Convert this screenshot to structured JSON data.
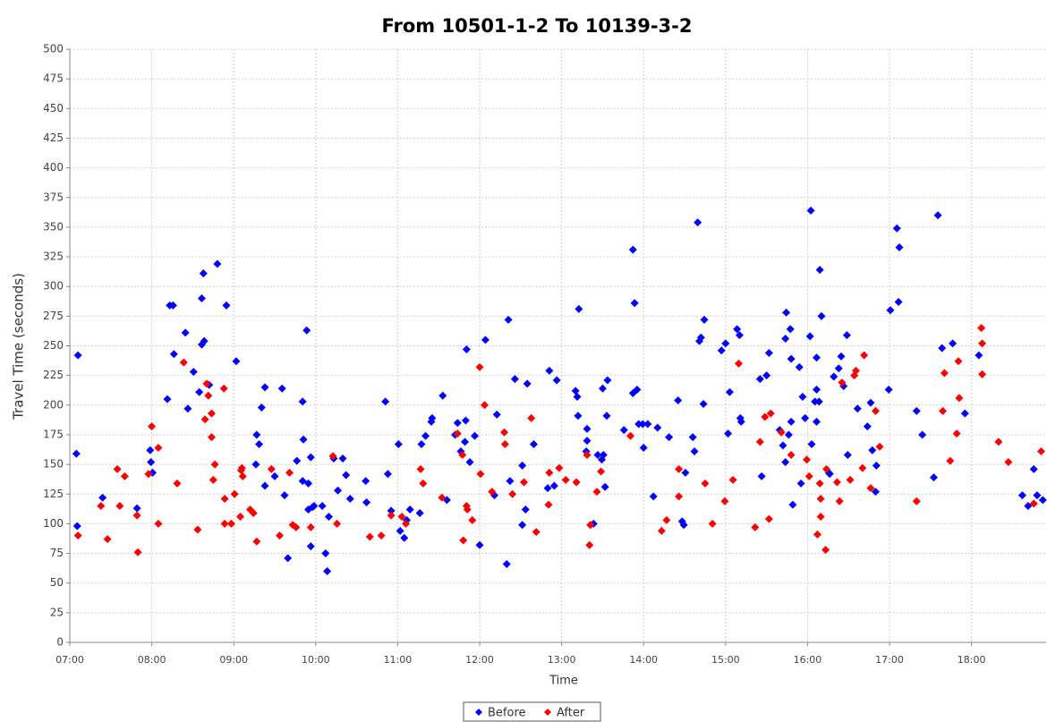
{
  "chart_data": {
    "type": "scatter",
    "title": "From 10501-1-2 To 10139-3-2",
    "x_label": "Time",
    "y_label": "Travel Time (seconds)",
    "xlim": [
      7,
      18.91
    ],
    "ylim": [
      0,
      500
    ],
    "xticks": [
      {
        "value": 7,
        "label": "07:00"
      },
      {
        "value": 8,
        "label": "08:00"
      },
      {
        "value": 9,
        "label": "09:00"
      },
      {
        "value": 10,
        "label": "10:00"
      },
      {
        "value": 11,
        "label": "11:00"
      },
      {
        "value": 12,
        "label": "12:00"
      },
      {
        "value": 13,
        "label": "13:00"
      },
      {
        "value": 14,
        "label": "14:00"
      },
      {
        "value": 15,
        "label": "15:00"
      },
      {
        "value": 16,
        "label": "16:00"
      },
      {
        "value": 17,
        "label": "17:00"
      },
      {
        "value": 18,
        "label": "18:00"
      }
    ],
    "yticks": [
      0,
      25,
      50,
      75,
      100,
      125,
      150,
      175,
      200,
      225,
      250,
      275,
      300,
      325,
      350,
      375,
      400,
      425,
      450,
      475,
      500
    ],
    "grid": true,
    "series": [
      {
        "name": "Before",
        "color": "#0000ff",
        "x": [
          7.1,
          7.08,
          7.09,
          7.4,
          7.82,
          7.98,
          7.99,
          8.01,
          8.19,
          8.22,
          8.26,
          8.27,
          8.41,
          8.44,
          8.51,
          8.58,
          8.61,
          8.61,
          8.63,
          8.64,
          8.7,
          8.8,
          8.91,
          9.03,
          9.28,
          9.31,
          9.34,
          9.38,
          9.27,
          9.38,
          9.5,
          9.59,
          9.62,
          9.66,
          9.77,
          9.84,
          9.85,
          9.84,
          9.89,
          9.91,
          9.94,
          9.91,
          9.96,
          9.94,
          9.98,
          10.08,
          10.12,
          10.14,
          10.16,
          10.22,
          10.27,
          10.33,
          10.37,
          10.42,
          10.61,
          10.62,
          10.85,
          10.88,
          10.92,
          11.01,
          11.03,
          11.08,
          11.11,
          11.15,
          11.27,
          11.29,
          11.34,
          11.41,
          11.42,
          11.55,
          11.6,
          11.7,
          11.73,
          11.77,
          11.82,
          11.83,
          11.84,
          11.88,
          11.94,
          12.0,
          12.07,
          12.18,
          12.21,
          12.33,
          12.35,
          12.37,
          12.43,
          12.52,
          12.56,
          12.58,
          12.52,
          12.66,
          12.83,
          12.85,
          12.94,
          12.91,
          13.17,
          13.19,
          13.21,
          13.2,
          13.31,
          13.31,
          13.3,
          13.39,
          13.44,
          13.49,
          13.5,
          13.51,
          13.53,
          13.56,
          13.55,
          13.76,
          13.87,
          13.89,
          13.87,
          13.92,
          13.94,
          13.99,
          14.0,
          14.05,
          14.12,
          14.17,
          14.31,
          14.42,
          14.47,
          14.49,
          14.51,
          14.6,
          14.62,
          14.66,
          14.68,
          14.7,
          14.73,
          14.74,
          14.95,
          15.0,
          15.05,
          15.03,
          15.14,
          15.17,
          15.18,
          15.19,
          15.44,
          15.42,
          15.5,
          15.53,
          15.66,
          15.7,
          15.73,
          15.73,
          15.74,
          15.77,
          15.79,
          15.8,
          15.8,
          15.82,
          15.9,
          15.92,
          15.94,
          15.97,
          16.03,
          16.05,
          16.04,
          16.09,
          16.11,
          16.11,
          16.11,
          16.14,
          16.15,
          16.17,
          16.26,
          16.27,
          16.32,
          16.38,
          16.41,
          16.44,
          16.48,
          16.49,
          16.61,
          16.73,
          16.77,
          16.79,
          16.83,
          16.84,
          16.99,
          17.01,
          17.09,
          17.11,
          17.12,
          17.33,
          17.4,
          17.54,
          17.59,
          17.64,
          17.77,
          17.92,
          18.09,
          18.62,
          18.69,
          18.76,
          18.8,
          18.87
        ],
        "values": [
          242,
          159,
          98,
          122,
          113,
          162,
          152,
          143,
          205,
          284,
          284,
          243,
          261,
          197,
          228,
          211,
          290,
          251,
          311,
          254,
          217,
          319,
          284,
          237,
          175,
          167,
          198,
          215,
          150,
          132,
          140,
          214,
          124,
          71,
          153,
          136,
          171,
          203,
          263,
          134,
          156,
          112,
          114,
          81,
          115,
          115,
          75,
          60,
          106,
          155,
          128,
          155,
          141,
          121,
          136,
          118,
          203,
          142,
          111,
          167,
          94,
          88,
          103,
          112,
          109,
          167,
          174,
          186,
          189,
          208,
          120,
          175,
          185,
          161,
          169,
          187,
          247,
          152,
          174,
          82,
          255,
          124,
          192,
          66,
          272,
          136,
          222,
          149,
          112,
          218,
          99,
          167,
          130,
          229,
          221,
          132,
          212,
          207,
          281,
          191,
          180,
          170,
          161,
          100,
          158,
          154,
          214,
          158,
          131,
          221,
          191,
          179,
          331,
          286,
          210,
          213,
          184,
          184,
          164,
          184,
          123,
          181,
          173,
          204,
          102,
          99,
          143,
          173,
          161,
          354,
          254,
          257,
          201,
          272,
          246,
          252,
          211,
          176,
          264,
          259,
          189,
          186,
          140,
          222,
          225,
          244,
          179,
          166,
          152,
          256,
          278,
          175,
          264,
          239,
          186,
          116,
          232,
          134,
          207,
          189,
          258,
          167,
          364,
          203,
          240,
          213,
          186,
          203,
          314,
          275,
          143,
          142,
          224,
          231,
          241,
          216,
          259,
          158,
          197,
          182,
          202,
          162,
          127,
          149,
          213,
          280,
          349,
          287,
          333,
          195,
          175,
          139,
          360,
          248,
          252,
          193,
          242,
          124,
          115,
          146,
          124,
          120
        ]
      },
      {
        "name": "After",
        "color": "#ff0000",
        "x": [
          7.1,
          7.38,
          7.46,
          7.58,
          7.61,
          7.67,
          7.82,
          7.83,
          8.0,
          7.96,
          8.08,
          8.08,
          8.31,
          8.39,
          8.56,
          8.65,
          8.67,
          8.69,
          8.73,
          8.73,
          8.75,
          8.77,
          8.88,
          8.89,
          8.89,
          8.97,
          9.01,
          9.09,
          9.1,
          9.11,
          9.08,
          9.2,
          9.24,
          9.28,
          9.46,
          9.56,
          9.68,
          9.72,
          9.76,
          9.94,
          10.21,
          10.26,
          10.66,
          10.8,
          10.92,
          11.05,
          11.1,
          11.28,
          11.31,
          11.54,
          11.73,
          11.79,
          11.8,
          11.84,
          11.85,
          11.91,
          12.0,
          12.01,
          12.06,
          12.15,
          12.3,
          12.31,
          12.4,
          12.54,
          12.63,
          12.69,
          12.85,
          12.84,
          12.97,
          13.05,
          13.18,
          13.31,
          13.34,
          13.35,
          13.43,
          13.48,
          13.84,
          14.22,
          14.28,
          14.43,
          14.43,
          14.75,
          14.84,
          14.99,
          15.09,
          15.16,
          15.36,
          15.42,
          15.48,
          15.53,
          15.55,
          15.68,
          15.8,
          15.99,
          16.02,
          16.12,
          16.15,
          16.16,
          16.16,
          16.22,
          16.23,
          16.36,
          16.39,
          16.42,
          16.52,
          16.57,
          16.59,
          16.67,
          16.69,
          16.77,
          16.83,
          16.88,
          17.33,
          17.65,
          17.67,
          17.74,
          17.82,
          17.84,
          17.85,
          18.12,
          18.13,
          18.13,
          18.33,
          18.45,
          18.76,
          18.85
        ],
        "values": [
          90,
          115,
          87,
          146,
          115,
          140,
          107,
          76,
          182,
          142,
          164,
          100,
          134,
          236,
          95,
          188,
          218,
          208,
          173,
          193,
          137,
          150,
          214,
          100,
          121,
          100,
          125,
          145,
          147,
          140,
          106,
          112,
          109,
          85,
          146,
          90,
          143,
          99,
          97,
          97,
          157,
          100,
          89,
          90,
          107,
          106,
          100,
          146,
          134,
          122,
          176,
          158,
          86,
          115,
          112,
          103,
          232,
          142,
          200,
          127,
          177,
          167,
          125,
          135,
          189,
          93,
          143,
          116,
          147,
          137,
          135,
          158,
          82,
          99,
          127,
          144,
          174,
          94,
          103,
          146,
          123,
          134,
          100,
          119,
          137,
          235,
          97,
          169,
          190,
          104,
          193,
          177,
          158,
          154,
          140,
          91,
          134,
          121,
          106,
          78,
          146,
          135,
          119,
          219,
          137,
          225,
          229,
          147,
          242,
          130,
          195,
          165,
          119,
          195,
          227,
          153,
          176,
          237,
          206,
          265,
          252,
          226,
          169,
          152,
          117,
          161
        ]
      }
    ]
  }
}
